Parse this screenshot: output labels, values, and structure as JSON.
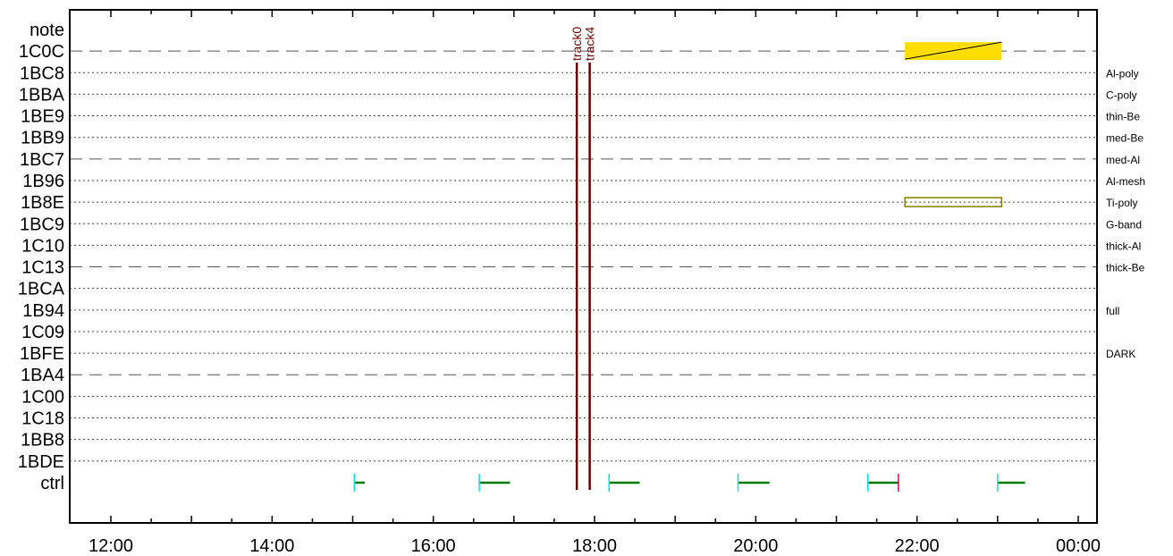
{
  "chart_data": {
    "type": "timeline",
    "x_axis": {
      "range_hours": [
        12,
        24
      ],
      "tick_labels": [
        "12:00",
        "14:00",
        "16:00",
        "18:00",
        "20:00",
        "22:00",
        "00:00"
      ],
      "tick_values_hours": [
        12,
        14,
        16,
        18,
        20,
        22,
        24
      ],
      "minor_tick_step_hours": 0.5
    },
    "rows": [
      {
        "label": "note",
        "right": "",
        "line": "none"
      },
      {
        "label": "1C0C",
        "right": "",
        "line": "dashed"
      },
      {
        "label": "1BC8",
        "right": "Al-poly",
        "line": "dotted"
      },
      {
        "label": "1BBA",
        "right": "C-poly",
        "line": "dotted"
      },
      {
        "label": "1BE9",
        "right": "thin-Be",
        "line": "dotted"
      },
      {
        "label": "1BB9",
        "right": "med-Be",
        "line": "dotted"
      },
      {
        "label": "1BC7",
        "right": "med-Al",
        "line": "dashed"
      },
      {
        "label": "1B96",
        "right": "Al-mesh",
        "line": "dotted"
      },
      {
        "label": "1B8E",
        "right": "Ti-poly",
        "line": "dotted"
      },
      {
        "label": "1BC9",
        "right": "G-band",
        "line": "dotted"
      },
      {
        "label": "1C10",
        "right": "thick-Al",
        "line": "dotted"
      },
      {
        "label": "1C13",
        "right": "thick-Be",
        "line": "dashed"
      },
      {
        "label": "1BCA",
        "right": "",
        "line": "dotted"
      },
      {
        "label": "1B94",
        "right": "full",
        "line": "dotted"
      },
      {
        "label": "1C09",
        "right": "",
        "line": "dotted"
      },
      {
        "label": "1BFE",
        "right": "DARK",
        "line": "dotted"
      },
      {
        "label": "1BA4",
        "right": "",
        "line": "dashed"
      },
      {
        "label": "1C00",
        "right": "",
        "line": "dotted"
      },
      {
        "label": "1C18",
        "right": "",
        "line": "dotted"
      },
      {
        "label": "1BB8",
        "right": "",
        "line": "dotted"
      },
      {
        "label": "1BDE",
        "right": "",
        "line": "dotted"
      },
      {
        "label": "ctrl",
        "right": "",
        "line": "none"
      }
    ],
    "markers": [
      {
        "label": "track0",
        "x_hours": 17.78,
        "color": "#6b0000"
      },
      {
        "label": "track4",
        "x_hours": 17.94,
        "color": "#6b0000"
      }
    ],
    "bars": [
      {
        "row": "1C0C",
        "start_hours": 21.85,
        "end_hours": 23.05,
        "style": "filled",
        "fill": "#ffdd00",
        "diagonal": true
      },
      {
        "row": "1B8E",
        "start_hours": 21.85,
        "end_hours": 23.05,
        "style": "outline",
        "stroke": "#808000"
      }
    ],
    "ctrl_segments": [
      {
        "start_hours": 15.02,
        "end_hours": 15.15,
        "start_color": "#00e5e5",
        "end_color": ""
      },
      {
        "start_hours": 16.57,
        "end_hours": 16.95,
        "start_color": "#00e5e5",
        "end_color": ""
      },
      {
        "start_hours": 18.18,
        "end_hours": 18.56,
        "start_color": "#00e5e5",
        "end_color": ""
      },
      {
        "start_hours": 19.78,
        "end_hours": 20.17,
        "start_color": "#00e5e5",
        "end_color": ""
      },
      {
        "start_hours": 21.39,
        "end_hours": 21.77,
        "start_color": "#00e5e5",
        "end_color": "#e0006a"
      },
      {
        "start_hours": 23.0,
        "end_hours": 23.34,
        "start_color": "#00e5e5",
        "end_color": ""
      }
    ],
    "ctrl_segment_color": "#007a00"
  }
}
